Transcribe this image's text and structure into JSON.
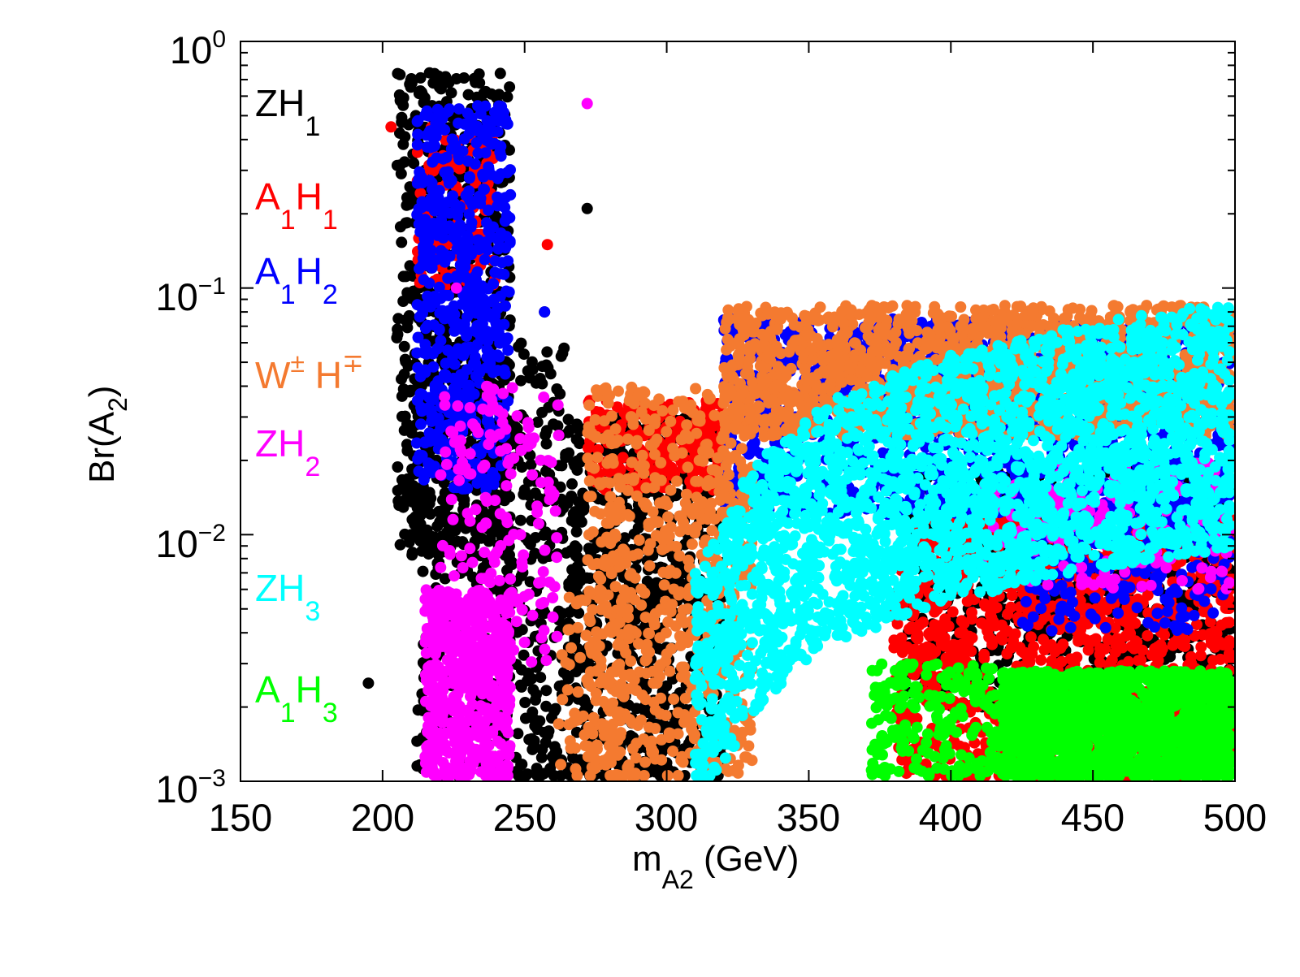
{
  "chart_data": {
    "type": "scatter",
    "xlabel": "m_A2 (GeV)",
    "xlabel_main": "m",
    "xlabel_sub": "A2",
    "xlabel_unit": " (GeV)",
    "ylabel": "Br(A_2)",
    "ylabel_main": "Br(A",
    "ylabel_sub": "2",
    "ylabel_end": ")",
    "xlim": [
      150,
      500
    ],
    "ylim": [
      0.001,
      1
    ],
    "yscale": "log",
    "x_ticks": [
      150,
      200,
      250,
      300,
      350,
      400,
      450,
      500
    ],
    "x_tick_labels": [
      "150",
      "200",
      "250",
      "300",
      "350",
      "400",
      "450",
      "500"
    ],
    "y_ticks": [
      {
        "value": 1,
        "base": "10",
        "exp": "0"
      },
      {
        "value": 0.1,
        "base": "10",
        "exp": "−1"
      },
      {
        "value": 0.01,
        "base": "10",
        "exp": "−2"
      },
      {
        "value": 0.001,
        "base": "10",
        "exp": "−3"
      }
    ],
    "grid": false,
    "legend_position": "left, inside axes",
    "series": [
      {
        "name": "ZH1",
        "label_main": "ZH",
        "label_sub": "1",
        "color": "#000000",
        "regions": [
          {
            "x": [
              205,
              245
            ],
            "y": [
              0.008,
              0.75
            ],
            "n": 650
          },
          {
            "x": [
              212,
              265
            ],
            "y": [
              0.001,
              0.06
            ],
            "n": 550
          },
          {
            "x": [
              265,
              320
            ],
            "y": [
              0.001,
              0.03
            ],
            "n": 750
          },
          {
            "x": [
              385,
              500
            ],
            "y": [
              0.002,
              0.02
            ],
            "n": 850
          }
        ],
        "outliers": [
          [
            272,
            0.21
          ],
          [
            195,
            0.0025
          ],
          [
            257,
            0.08
          ]
        ]
      },
      {
        "name": "A1H1",
        "label_main": "A",
        "label_sub1": "1",
        "label_mid": "H",
        "label_sub": "1",
        "color": "#ff0000",
        "regions": [
          {
            "x": [
              212,
              240
            ],
            "y": [
              0.1,
              0.45
            ],
            "n": 120
          },
          {
            "x": [
              272,
              320
            ],
            "y": [
              0.015,
              0.035
            ],
            "n": 220
          },
          {
            "x": [
              380,
              500
            ],
            "y": [
              0.001,
              0.012
            ],
            "n": 1300
          }
        ],
        "outliers": [
          [
            258,
            0.15
          ],
          [
            203,
            0.45
          ]
        ]
      },
      {
        "name": "A1H2",
        "label_main": "A",
        "label_sub1": "1",
        "label_mid": "H",
        "label_sub": "2",
        "color": "#0000ff",
        "regions": [
          {
            "x": [
              212,
              245
            ],
            "y": [
              0.015,
              0.55
            ],
            "n": 550
          },
          {
            "x": [
              320,
              500
            ],
            "y": [
              0.012,
              0.075
            ],
            "n": 1500
          },
          {
            "x": [
              425,
              500
            ],
            "y": [
              0.004,
              0.015
            ],
            "n": 220
          }
        ],
        "outliers": [
          [
            257,
            0.08
          ]
        ]
      },
      {
        "name": "W±H∓",
        "label_main": "W",
        "label_sup1": "±",
        "label_mid": " H",
        "label_sup": "∓",
        "color": "#f47a30",
        "regions": [
          {
            "x": [
              272,
              330
            ],
            "y": [
              0.001,
              0.04
            ],
            "n": 700
          },
          {
            "x": [
              320,
              500
            ],
            "y": [
              0.025,
              0.085
            ],
            "n": 1500
          },
          {
            "x": [
              262,
              285
            ],
            "y": [
              0.001,
              0.006
            ],
            "n": 80
          }
        ],
        "outliers": []
      },
      {
        "name": "ZH2",
        "label_main": "ZH",
        "label_sub": "2",
        "color": "#ff00ff",
        "regions": [
          {
            "x": [
              215,
              245
            ],
            "y": [
              0.001,
              0.006
            ],
            "n": 550
          },
          {
            "x": [
              220,
              262
            ],
            "y": [
              0.003,
              0.04
            ],
            "n": 180
          },
          {
            "x": [
              410,
              500
            ],
            "y": [
              0.006,
              0.02
            ],
            "n": 180
          }
        ],
        "outliers": [
          [
            272,
            0.56
          ],
          [
            226,
            0.1
          ]
        ]
      },
      {
        "name": "ZH3",
        "label_main": "ZH",
        "label_sub": "3",
        "color": "#00ffff",
        "band_center": [
          [
            310,
            0.0022
          ],
          [
            330,
            0.006
          ],
          [
            355,
            0.011
          ],
          [
            400,
            0.017
          ],
          [
            450,
            0.023
          ],
          [
            500,
            0.028
          ]
        ],
        "n": 2600,
        "outliers": []
      },
      {
        "name": "A1H3",
        "label_main": "A",
        "label_sub1": "1",
        "label_mid": "H",
        "label_sub": "3",
        "color": "#00ff00",
        "regions": [
          {
            "x": [
              372,
              420
            ],
            "y": [
              0.001,
              0.003
            ],
            "n": 220
          },
          {
            "x": [
              418,
              500
            ],
            "y": [
              0.001,
              0.0028
            ],
            "n": 1400
          }
        ],
        "outliers": []
      }
    ]
  }
}
